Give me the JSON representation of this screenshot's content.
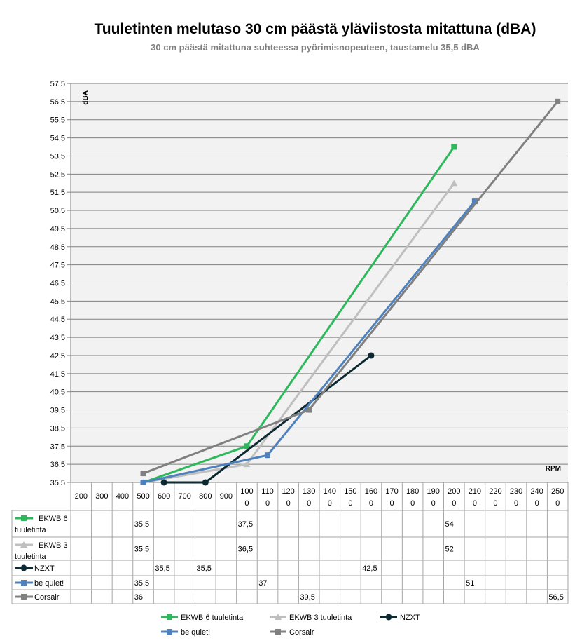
{
  "chart_data": {
    "type": "line",
    "title": "Tuuletinten melutaso 30 cm päästä yläviistosta mitattuna (dBA)",
    "subtitle": "30 cm päästä mitattuna suhteessa pyörimisnopeuteen, taustamelu 35,5 dBA",
    "xlabel": "RPM",
    "ylabel": "dBA",
    "ylim": [
      35.5,
      57.5
    ],
    "grid": true,
    "legend_position": "bottom",
    "categories": [
      "200",
      "300",
      "400",
      "500",
      "600",
      "700",
      "800",
      "900",
      "1000",
      "1100",
      "1200",
      "1300",
      "1400",
      "1500",
      "1600",
      "1700",
      "1800",
      "1900",
      "2000",
      "2100",
      "2200",
      "2300",
      "2400",
      "2500"
    ],
    "y_ticks": [
      "57,5",
      "56,5",
      "55,5",
      "54,5",
      "53,5",
      "52,5",
      "51,5",
      "50,5",
      "49,5",
      "48,5",
      "47,5",
      "46,5",
      "45,5",
      "44,5",
      "43,5",
      "42,5",
      "41,5",
      "40,5",
      "39,5",
      "38,5",
      "37,5",
      "36,5",
      "35,5"
    ],
    "series": [
      {
        "name": "EKWB 6 tuuletinta",
        "color": "#2eb85c",
        "marker": "square",
        "values": [
          null,
          null,
          null,
          35.5,
          null,
          null,
          null,
          null,
          37.5,
          null,
          null,
          null,
          null,
          null,
          null,
          null,
          null,
          null,
          54,
          null,
          null,
          null,
          null,
          null
        ],
        "labels": [
          null,
          null,
          null,
          "35,5",
          null,
          null,
          null,
          null,
          "37,5",
          null,
          null,
          null,
          null,
          null,
          null,
          null,
          null,
          null,
          "54",
          null,
          null,
          null,
          null,
          null
        ]
      },
      {
        "name": "EKWB 3 tuuletinta",
        "color": "#bfbfbf",
        "marker": "triangle",
        "values": [
          null,
          null,
          null,
          35.5,
          null,
          null,
          null,
          null,
          36.5,
          null,
          null,
          null,
          null,
          null,
          null,
          null,
          null,
          null,
          52,
          null,
          null,
          null,
          null,
          null
        ],
        "labels": [
          null,
          null,
          null,
          "35,5",
          null,
          null,
          null,
          null,
          "36,5",
          null,
          null,
          null,
          null,
          null,
          null,
          null,
          null,
          null,
          "52",
          null,
          null,
          null,
          null,
          null
        ]
      },
      {
        "name": "NZXT",
        "color": "#0d2a33",
        "marker": "circle",
        "values": [
          null,
          null,
          null,
          null,
          35.5,
          null,
          35.5,
          null,
          null,
          null,
          null,
          null,
          null,
          null,
          42.5,
          null,
          null,
          null,
          null,
          null,
          null,
          null,
          null,
          null
        ],
        "labels": [
          null,
          null,
          null,
          null,
          "35,5",
          null,
          "35,5",
          null,
          null,
          null,
          null,
          null,
          null,
          null,
          "42,5",
          null,
          null,
          null,
          null,
          null,
          null,
          null,
          null,
          null
        ]
      },
      {
        "name": "be quiet!",
        "color": "#4f81bd",
        "marker": "square",
        "values": [
          null,
          null,
          null,
          35.5,
          null,
          null,
          null,
          null,
          null,
          37,
          null,
          null,
          null,
          null,
          null,
          null,
          null,
          null,
          null,
          51,
          null,
          null,
          null,
          null
        ],
        "labels": [
          null,
          null,
          null,
          "35,5",
          null,
          null,
          null,
          null,
          null,
          "37",
          null,
          null,
          null,
          null,
          null,
          null,
          null,
          null,
          null,
          "51",
          null,
          null,
          null,
          null
        ]
      },
      {
        "name": "Corsair",
        "color": "#808080",
        "marker": "square",
        "values": [
          null,
          null,
          null,
          36,
          null,
          null,
          null,
          null,
          null,
          null,
          null,
          39.5,
          null,
          null,
          null,
          null,
          null,
          null,
          null,
          null,
          null,
          null,
          null,
          56.5
        ],
        "labels": [
          null,
          null,
          null,
          "36",
          null,
          null,
          null,
          null,
          null,
          null,
          null,
          "39,5",
          null,
          null,
          null,
          null,
          null,
          null,
          null,
          null,
          null,
          null,
          null,
          "56,5"
        ]
      }
    ],
    "table_row_labels": [
      "EKWB 6\ntuuletinta",
      "EKWB 3\ntuuletinta",
      "NZXT",
      "be quiet!",
      "Corsair"
    ]
  }
}
